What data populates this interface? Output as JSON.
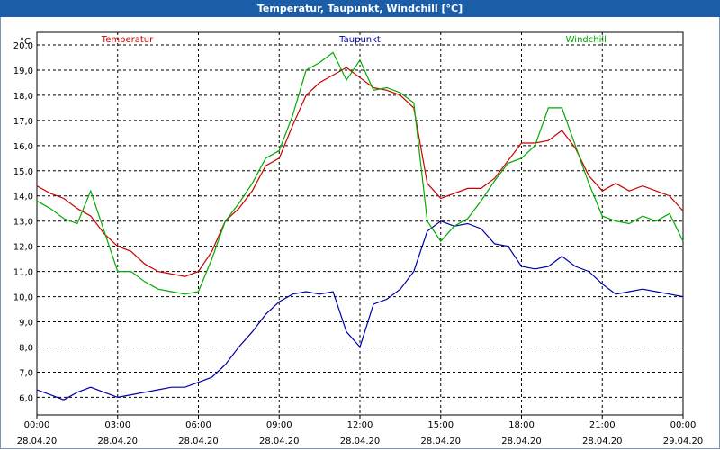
{
  "window": {
    "title": "Temperatur, Taupunkt, Windchill [°C]"
  },
  "chart_data": {
    "type": "line",
    "title": "Temperatur, Taupunkt, Windchill [°C]",
    "ylabel": "°C",
    "ylim": [
      5.3,
      20.5
    ],
    "yticks": [
      "6,0",
      "7,0",
      "8,0",
      "9,0",
      "10,0",
      "11,0",
      "12,0",
      "13,0",
      "14,0",
      "15,0",
      "16,0",
      "17,0",
      "18,0",
      "19,0",
      "20,0"
    ],
    "ytick_values": [
      6,
      7,
      8,
      9,
      10,
      11,
      12,
      13,
      14,
      15,
      16,
      17,
      18,
      19,
      20
    ],
    "xlim": [
      0,
      24
    ],
    "xticks": [
      {
        "hours": 0,
        "time": "00:00",
        "date": "28.04.20"
      },
      {
        "hours": 3,
        "time": "03:00",
        "date": "28.04.20"
      },
      {
        "hours": 6,
        "time": "06:00",
        "date": "28.04.20"
      },
      {
        "hours": 9,
        "time": "09:00",
        "date": "28.04.20"
      },
      {
        "hours": 12,
        "time": "12:00",
        "date": "28.04.20"
      },
      {
        "hours": 15,
        "time": "15:00",
        "date": "28.04.20"
      },
      {
        "hours": 18,
        "time": "18:00",
        "date": "28.04.20"
      },
      {
        "hours": 21,
        "time": "21:00",
        "date": "28.04.20"
      },
      {
        "hours": 24,
        "time": "00:00",
        "date": "29.04.20"
      }
    ],
    "grid": true,
    "legend": "top",
    "series": [
      {
        "name": "Temperatur",
        "color": "#cc0000",
        "x": [
          0,
          0.5,
          1,
          1.5,
          2,
          2.5,
          3,
          3.5,
          4,
          4.5,
          5,
          5.5,
          6,
          6.5,
          7,
          7.5,
          8,
          8.5,
          9,
          9.5,
          10,
          10.5,
          11,
          11.5,
          12,
          12.5,
          13,
          13.5,
          14,
          14.5,
          15,
          15.5,
          16,
          16.5,
          17,
          17.5,
          18,
          18.5,
          19,
          19.5,
          20,
          20.5,
          21,
          21.5,
          22,
          22.5,
          23,
          23.5,
          24
        ],
        "values": [
          14.4,
          14.1,
          13.9,
          13.5,
          13.2,
          12.5,
          12.0,
          11.8,
          11.3,
          11.0,
          10.9,
          10.8,
          11.0,
          11.8,
          13.0,
          13.5,
          14.2,
          15.2,
          15.5,
          16.8,
          18.0,
          18.5,
          18.8,
          19.1,
          18.7,
          18.3,
          18.2,
          18.0,
          17.5,
          14.5,
          13.9,
          14.1,
          14.3,
          14.3,
          14.7,
          15.4,
          16.1,
          16.1,
          16.2,
          16.6,
          15.9,
          14.8,
          14.2,
          14.5,
          14.2,
          14.4,
          14.2,
          14.0,
          13.4
        ]
      },
      {
        "name": "Taupunkt",
        "color": "#0000aa",
        "x": [
          0,
          0.5,
          1,
          1.5,
          2,
          2.5,
          3,
          3.5,
          4,
          4.5,
          5,
          5.5,
          6,
          6.5,
          7,
          7.5,
          8,
          8.5,
          9,
          9.5,
          10,
          10.5,
          11,
          11.5,
          12,
          12.5,
          13,
          13.5,
          14,
          14.5,
          15,
          15.5,
          16,
          16.5,
          17,
          17.5,
          18,
          18.5,
          19,
          19.5,
          20,
          20.5,
          21,
          21.5,
          22,
          22.5,
          23,
          23.5,
          24
        ],
        "values": [
          6.3,
          6.1,
          5.9,
          6.2,
          6.4,
          6.2,
          6.0,
          6.1,
          6.2,
          6.3,
          6.4,
          6.4,
          6.6,
          6.8,
          7.3,
          8.0,
          8.6,
          9.3,
          9.8,
          10.1,
          10.2,
          10.1,
          10.2,
          8.6,
          8.0,
          9.7,
          9.9,
          10.3,
          11.0,
          12.6,
          13.0,
          12.8,
          12.9,
          12.7,
          12.1,
          12.0,
          11.2,
          11.1,
          11.2,
          11.6,
          11.2,
          11.0,
          10.5,
          10.1,
          10.2,
          10.3,
          10.2,
          10.1,
          10.0
        ]
      },
      {
        "name": "Windchill",
        "color": "#00aa00",
        "x": [
          0,
          0.5,
          1,
          1.5,
          2,
          2.5,
          3,
          3.5,
          4,
          4.5,
          5,
          5.5,
          6,
          6.5,
          7,
          7.5,
          8,
          8.5,
          9,
          9.5,
          10,
          10.5,
          11,
          11.5,
          12,
          12.5,
          13,
          13.5,
          14,
          14.5,
          15,
          15.5,
          16,
          16.5,
          17,
          17.5,
          18,
          18.5,
          19,
          19.5,
          20,
          20.5,
          21,
          21.5,
          22,
          22.5,
          23,
          23.5,
          24
        ],
        "values": [
          13.8,
          13.5,
          13.1,
          12.9,
          14.2,
          12.6,
          11.0,
          11.0,
          10.6,
          10.3,
          10.2,
          10.1,
          10.2,
          11.5,
          13.0,
          13.7,
          14.5,
          15.5,
          15.8,
          17.2,
          19.0,
          19.3,
          19.7,
          18.6,
          19.4,
          18.2,
          18.3,
          18.1,
          17.7,
          13.0,
          12.2,
          12.8,
          13.1,
          13.8,
          14.6,
          15.3,
          15.5,
          16.0,
          17.5,
          17.5,
          16.0,
          14.5,
          13.2,
          13.0,
          12.9,
          13.2,
          13.0,
          13.3,
          12.2
        ]
      }
    ]
  }
}
